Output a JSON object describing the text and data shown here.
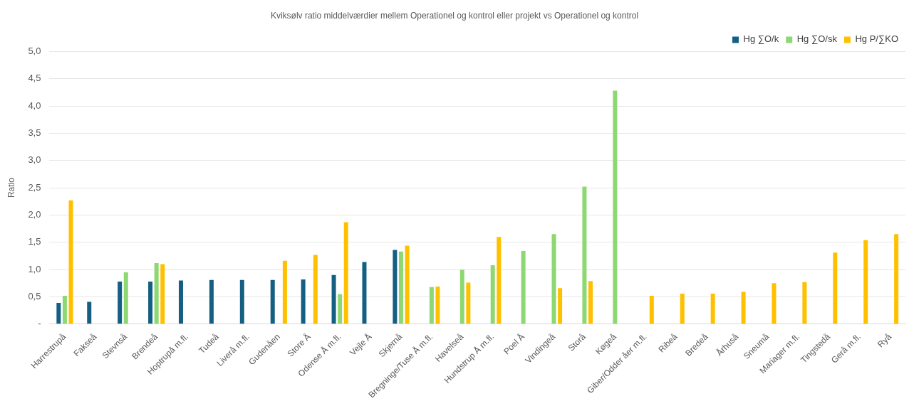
{
  "chart_data": {
    "type": "bar",
    "title": "Kviksølv ratio middelværdier mellem Operationel og kontrol eller projekt vs Operationel og kontrol",
    "ylabel": "Ratio",
    "categories": [
      "Harrestrupå",
      "Fakseå",
      "Stevnså",
      "Brendeå",
      "Hoptrupå m.fl.",
      "Tudeå",
      "Liverå m.fl.",
      "Gudenåen",
      "Store Å",
      "Odense Å m.fl.",
      "Vejle Å",
      "Skjernå",
      "Bregninge/Tuse Å m.fl.",
      "Havelseå",
      "Hundstrup Å m.fl.",
      "Poel Å",
      "Vindingeå",
      "Storå",
      "Køgeå",
      "Giber/Odder åer m.fl.",
      "Ribeå",
      "Bredeå",
      "Århuså",
      "Sneumå",
      "Mariager m.fl.",
      "Tingstedå",
      "Gerå m.fl.",
      "Ryå"
    ],
    "series": [
      {
        "name": "Hg ∑O/k",
        "color": "#156082",
        "values": [
          0.39,
          0.41,
          0.78,
          0.78,
          0.8,
          0.81,
          0.81,
          0.81,
          0.82,
          0.9,
          1.14,
          1.36,
          null,
          null,
          null,
          null,
          null,
          null,
          null,
          null,
          null,
          null,
          null,
          null,
          null,
          null,
          null,
          null
        ]
      },
      {
        "name": "Hg ∑O/sk",
        "color": "#8ed873",
        "values": [
          0.52,
          null,
          0.95,
          1.12,
          null,
          null,
          null,
          null,
          null,
          0.55,
          null,
          1.33,
          0.68,
          1.0,
          1.08,
          1.34,
          1.65,
          2.52,
          4.28,
          null,
          null,
          null,
          null,
          null,
          null,
          null,
          null,
          null
        ]
      },
      {
        "name": "Hg P/∑KO",
        "color": "#ffc000",
        "values": [
          2.27,
          null,
          null,
          1.1,
          null,
          null,
          null,
          1.16,
          1.27,
          1.87,
          null,
          1.44,
          0.69,
          0.76,
          1.6,
          null,
          0.66,
          0.79,
          null,
          0.52,
          0.56,
          0.56,
          0.59,
          0.75,
          0.77,
          1.31,
          1.54,
          1.65
        ]
      }
    ],
    "ylim": [
      0,
      5
    ],
    "yticks": [
      {
        "value": 0,
        "label": "-"
      },
      {
        "value": 0.5,
        "label": "0,5"
      },
      {
        "value": 1,
        "label": "1,0"
      },
      {
        "value": 1.5,
        "label": "1,5"
      },
      {
        "value": 2,
        "label": "2,0"
      },
      {
        "value": 2.5,
        "label": "2,5"
      },
      {
        "value": 3,
        "label": "3,0"
      },
      {
        "value": 3.5,
        "label": "3,5"
      },
      {
        "value": 4,
        "label": "4,0"
      },
      {
        "value": 4.5,
        "label": "4,5"
      },
      {
        "value": 5,
        "label": "5,0"
      }
    ],
    "grid": "y",
    "legend": "top right"
  }
}
